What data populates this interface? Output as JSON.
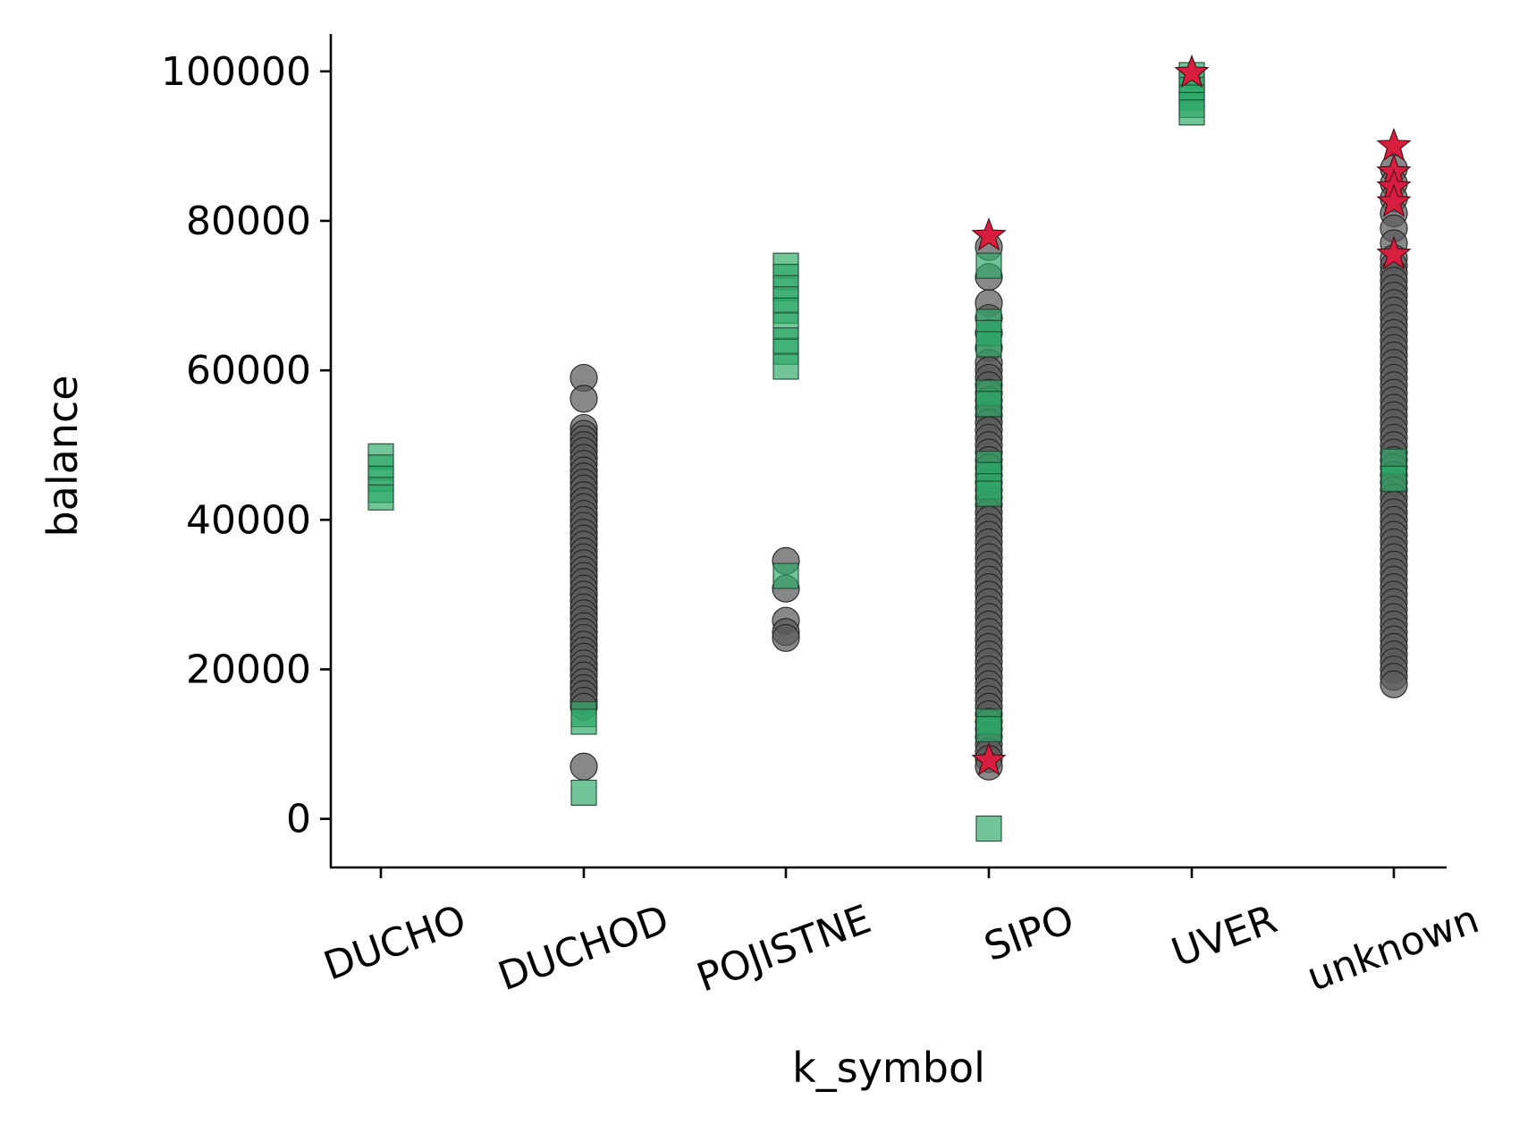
{
  "chart_data": {
    "type": "scatter",
    "title": "",
    "xlabel": "k_symbol",
    "ylabel": "balance",
    "categories": [
      "DUCHO",
      "DUCHOD",
      "POJISTNE",
      "SIPO",
      "UVER",
      "unknown"
    ],
    "yticks": [
      "0",
      "20000",
      "40000",
      "60000",
      "80000",
      "100000"
    ],
    "ytick_values": [
      0,
      20000,
      40000,
      60000,
      80000,
      100000
    ],
    "ylim": [
      -6500,
      105000
    ],
    "grid": false,
    "legend": "none",
    "colors": {
      "circle": "#5a5a5a",
      "square": "#2eaa68",
      "star": "#d81e3e"
    },
    "series": [
      {
        "marker": "circle",
        "points": [
          [
            "DUCHOD",
            59000
          ],
          [
            "DUCHOD",
            56200
          ],
          [
            "DUCHOD",
            52300
          ],
          [
            "DUCHOD",
            51500
          ],
          [
            "DUCHOD",
            50800
          ],
          [
            "DUCHOD",
            50000
          ],
          [
            "DUCHOD",
            49200
          ],
          [
            "DUCHOD",
            48300
          ],
          [
            "DUCHOD",
            47500
          ],
          [
            "DUCHOD",
            46600
          ],
          [
            "DUCHOD",
            45800
          ],
          [
            "DUCHOD",
            45000
          ],
          [
            "DUCHOD",
            44200
          ],
          [
            "DUCHOD",
            43300
          ],
          [
            "DUCHOD",
            42500
          ],
          [
            "DUCHOD",
            41700
          ],
          [
            "DUCHOD",
            40800
          ],
          [
            "DUCHOD",
            40000
          ],
          [
            "DUCHOD",
            39200
          ],
          [
            "DUCHOD",
            38300
          ],
          [
            "DUCHOD",
            37500
          ],
          [
            "DUCHOD",
            36700
          ],
          [
            "DUCHOD",
            35800
          ],
          [
            "DUCHOD",
            35000
          ],
          [
            "DUCHOD",
            34200
          ],
          [
            "DUCHOD",
            33300
          ],
          [
            "DUCHOD",
            32500
          ],
          [
            "DUCHOD",
            31700
          ],
          [
            "DUCHOD",
            30800
          ],
          [
            "DUCHOD",
            30000
          ],
          [
            "DUCHOD",
            29200
          ],
          [
            "DUCHOD",
            28300
          ],
          [
            "DUCHOD",
            27500
          ],
          [
            "DUCHOD",
            26700
          ],
          [
            "DUCHOD",
            25800
          ],
          [
            "DUCHOD",
            25000
          ],
          [
            "DUCHOD",
            24200
          ],
          [
            "DUCHOD",
            23300
          ],
          [
            "DUCHOD",
            22500
          ],
          [
            "DUCHOD",
            21700
          ],
          [
            "DUCHOD",
            20800
          ],
          [
            "DUCHOD",
            20000
          ],
          [
            "DUCHOD",
            19200
          ],
          [
            "DUCHOD",
            18300
          ],
          [
            "DUCHOD",
            17500
          ],
          [
            "DUCHOD",
            16700
          ],
          [
            "DUCHOD",
            15800
          ],
          [
            "DUCHOD",
            15000
          ],
          [
            "DUCHOD",
            7000
          ],
          [
            "POJISTNE",
            34500
          ],
          [
            "POJISTNE",
            30800
          ],
          [
            "POJISTNE",
            26500
          ],
          [
            "POJISTNE",
            25000
          ],
          [
            "POJISTNE",
            24200
          ],
          [
            "SIPO",
            76500
          ],
          [
            "SIPO",
            72500
          ],
          [
            "SIPO",
            69000
          ],
          [
            "SIPO",
            67000
          ],
          [
            "SIPO",
            65000
          ],
          [
            "SIPO",
            63000
          ],
          [
            "SIPO",
            61000
          ],
          [
            "SIPO",
            60000
          ],
          [
            "SIPO",
            59000
          ],
          [
            "SIPO",
            58000
          ],
          [
            "SIPO",
            57000
          ],
          [
            "SIPO",
            56000
          ],
          [
            "SIPO",
            55000
          ],
          [
            "SIPO",
            54000
          ],
          [
            "SIPO",
            53000
          ],
          [
            "SIPO",
            52000
          ],
          [
            "SIPO",
            51000
          ],
          [
            "SIPO",
            50000
          ],
          [
            "SIPO",
            49000
          ],
          [
            "SIPO",
            48000
          ],
          [
            "SIPO",
            47000
          ],
          [
            "SIPO",
            46000
          ],
          [
            "SIPO",
            45000
          ],
          [
            "SIPO",
            44000
          ],
          [
            "SIPO",
            43000
          ],
          [
            "SIPO",
            42000
          ],
          [
            "SIPO",
            41000
          ],
          [
            "SIPO",
            40000
          ],
          [
            "SIPO",
            39000
          ],
          [
            "SIPO",
            38000
          ],
          [
            "SIPO",
            37000
          ],
          [
            "SIPO",
            36000
          ],
          [
            "SIPO",
            35000
          ],
          [
            "SIPO",
            34000
          ],
          [
            "SIPO",
            33000
          ],
          [
            "SIPO",
            32000
          ],
          [
            "SIPO",
            31000
          ],
          [
            "SIPO",
            30000
          ],
          [
            "SIPO",
            29000
          ],
          [
            "SIPO",
            28000
          ],
          [
            "SIPO",
            27000
          ],
          [
            "SIPO",
            26000
          ],
          [
            "SIPO",
            25000
          ],
          [
            "SIPO",
            24000
          ],
          [
            "SIPO",
            23000
          ],
          [
            "SIPO",
            22000
          ],
          [
            "SIPO",
            21000
          ],
          [
            "SIPO",
            20000
          ],
          [
            "SIPO",
            19000
          ],
          [
            "SIPO",
            18000
          ],
          [
            "SIPO",
            17000
          ],
          [
            "SIPO",
            16000
          ],
          [
            "SIPO",
            15000
          ],
          [
            "SIPO",
            14000
          ],
          [
            "SIPO",
            13000
          ],
          [
            "SIPO",
            12000
          ],
          [
            "SIPO",
            11000
          ],
          [
            "SIPO",
            10000
          ],
          [
            "SIPO",
            9000
          ],
          [
            "SIPO",
            8000
          ],
          [
            "SIPO",
            7000
          ],
          [
            "unknown",
            87000
          ],
          [
            "unknown",
            85000
          ],
          [
            "unknown",
            83000
          ],
          [
            "unknown",
            81000
          ],
          [
            "unknown",
            79000
          ],
          [
            "unknown",
            77000
          ],
          [
            "unknown",
            75000
          ],
          [
            "unknown",
            74000
          ],
          [
            "unknown",
            73000
          ],
          [
            "unknown",
            72000
          ],
          [
            "unknown",
            71000
          ],
          [
            "unknown",
            70000
          ],
          [
            "unknown",
            69000
          ],
          [
            "unknown",
            68000
          ],
          [
            "unknown",
            67000
          ],
          [
            "unknown",
            66000
          ],
          [
            "unknown",
            65000
          ],
          [
            "unknown",
            64000
          ],
          [
            "unknown",
            63000
          ],
          [
            "unknown",
            62000
          ],
          [
            "unknown",
            61000
          ],
          [
            "unknown",
            60000
          ],
          [
            "unknown",
            59000
          ],
          [
            "unknown",
            58000
          ],
          [
            "unknown",
            57000
          ],
          [
            "unknown",
            56000
          ],
          [
            "unknown",
            55000
          ],
          [
            "unknown",
            54000
          ],
          [
            "unknown",
            53000
          ],
          [
            "unknown",
            52000
          ],
          [
            "unknown",
            51000
          ],
          [
            "unknown",
            50000
          ],
          [
            "unknown",
            49000
          ],
          [
            "unknown",
            48000
          ],
          [
            "unknown",
            47000
          ],
          [
            "unknown",
            46000
          ],
          [
            "unknown",
            45000
          ],
          [
            "unknown",
            44000
          ],
          [
            "unknown",
            43000
          ],
          [
            "unknown",
            42000
          ],
          [
            "unknown",
            41000
          ],
          [
            "unknown",
            40000
          ],
          [
            "unknown",
            39000
          ],
          [
            "unknown",
            38000
          ],
          [
            "unknown",
            37000
          ],
          [
            "unknown",
            36000
          ],
          [
            "unknown",
            35000
          ],
          [
            "unknown",
            34000
          ],
          [
            "unknown",
            33000
          ],
          [
            "unknown",
            32000
          ],
          [
            "unknown",
            31000
          ],
          [
            "unknown",
            30000
          ],
          [
            "unknown",
            29000
          ],
          [
            "unknown",
            28000
          ],
          [
            "unknown",
            27000
          ],
          [
            "unknown",
            26000
          ],
          [
            "unknown",
            25000
          ],
          [
            "unknown",
            24000
          ],
          [
            "unknown",
            23000
          ],
          [
            "unknown",
            22000
          ],
          [
            "unknown",
            21000
          ],
          [
            "unknown",
            20000
          ],
          [
            "unknown",
            19000
          ],
          [
            "unknown",
            18000
          ]
        ]
      },
      {
        "marker": "square",
        "points": [
          [
            "DUCHO",
            48500
          ],
          [
            "DUCHO",
            47000
          ],
          [
            "DUCHO",
            45500
          ],
          [
            "DUCHO",
            44000
          ],
          [
            "DUCHO",
            43000
          ],
          [
            "DUCHOD",
            14000
          ],
          [
            "DUCHOD",
            13000
          ],
          [
            "DUCHOD",
            3500
          ],
          [
            "POJISTNE",
            74000
          ],
          [
            "POJISTNE",
            72500
          ],
          [
            "POJISTNE",
            71000
          ],
          [
            "POJISTNE",
            69500
          ],
          [
            "POJISTNE",
            68000
          ],
          [
            "POJISTNE",
            66000
          ],
          [
            "POJISTNE",
            64000
          ],
          [
            "POJISTNE",
            62500
          ],
          [
            "POJISTNE",
            60500
          ],
          [
            "POJISTNE",
            32500
          ],
          [
            "SIPO",
            74000
          ],
          [
            "SIPO",
            66500
          ],
          [
            "SIPO",
            65000
          ],
          [
            "SIPO",
            63500
          ],
          [
            "SIPO",
            57000
          ],
          [
            "SIPO",
            55500
          ],
          [
            "SIPO",
            47500
          ],
          [
            "SIPO",
            46000
          ],
          [
            "SIPO",
            44500
          ],
          [
            "SIPO",
            43500
          ],
          [
            "SIPO",
            13000
          ],
          [
            "SIPO",
            12000
          ],
          [
            "SIPO",
            -1300
          ],
          [
            "UVER",
            99500
          ],
          [
            "UVER",
            98500
          ],
          [
            "UVER",
            97500
          ],
          [
            "UVER",
            96500
          ],
          [
            "UVER",
            95500
          ],
          [
            "UVER",
            94500
          ],
          [
            "unknown",
            47800
          ],
          [
            "unknown",
            45500
          ]
        ]
      },
      {
        "marker": "star",
        "points": [
          [
            "SIPO",
            78000
          ],
          [
            "SIPO",
            7800
          ],
          [
            "UVER",
            99800
          ],
          [
            "unknown",
            90000
          ],
          [
            "unknown",
            86500
          ],
          [
            "unknown",
            84500
          ],
          [
            "unknown",
            82500
          ],
          [
            "unknown",
            75500
          ]
        ]
      }
    ]
  }
}
